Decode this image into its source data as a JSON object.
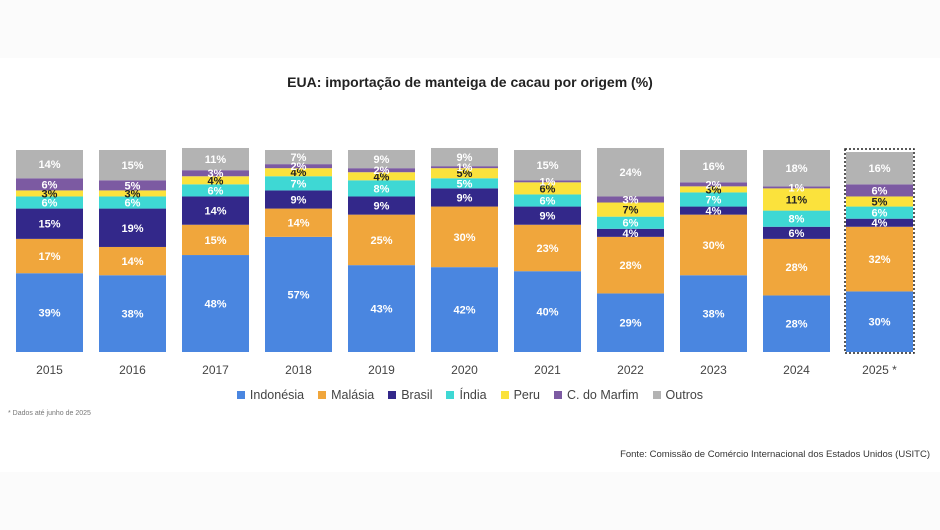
{
  "title": "EUA: importação de manteiga de cacau por origem (%)",
  "footnote": "* Dados até junho de 2025",
  "source": "Fonte: Comissão de Comércio Internacional dos Estados Unidos (USITC)",
  "colors": {
    "Indonésia": "#4a86e0",
    "Malásia": "#f0a63c",
    "Brasil": "#33288a",
    "Índia": "#3ed8d4",
    "Peru": "#fbe23c",
    "C. do Marfim": "#7c5aa2",
    "Outros": "#b3b3b3"
  },
  "legend": [
    "Indonésia",
    "Malásia",
    "Brasil",
    "Índia",
    "Peru",
    "C. do Marfim",
    "Outros"
  ],
  "chart_data": {
    "type": "bar",
    "stacked": true,
    "title": "EUA: importação de manteiga de cacau por origem (%)",
    "categories": [
      "2015",
      "2016",
      "2017",
      "2018",
      "2019",
      "2020",
      "2021",
      "2022",
      "2023",
      "2024",
      "2025 *"
    ],
    "highlight_category": "2025 *",
    "ylim": [
      0,
      100
    ],
    "series": [
      {
        "name": "Indonésia",
        "values": [
          39,
          38,
          48,
          57,
          43,
          42,
          40,
          29,
          38,
          28,
          30
        ]
      },
      {
        "name": "Malásia",
        "values": [
          17,
          14,
          15,
          14,
          25,
          30,
          23,
          28,
          30,
          28,
          32
        ]
      },
      {
        "name": "Brasil",
        "values": [
          15,
          19,
          14,
          9,
          9,
          9,
          9,
          4,
          4,
          6,
          4
        ]
      },
      {
        "name": "Índia",
        "values": [
          6,
          6,
          6,
          7,
          8,
          5,
          6,
          6,
          7,
          8,
          6
        ]
      },
      {
        "name": "Peru",
        "values": [
          3,
          3,
          4,
          4,
          4,
          5,
          6,
          7,
          3,
          11,
          5
        ]
      },
      {
        "name": "C. do Marfim",
        "values": [
          6,
          5,
          3,
          2,
          2,
          1,
          1,
          3,
          2,
          1,
          6
        ]
      },
      {
        "name": "Outros",
        "values": [
          14,
          15,
          11,
          7,
          9,
          9,
          15,
          24,
          16,
          18,
          16
        ]
      }
    ],
    "legend_position": "bottom",
    "grid": false
  }
}
